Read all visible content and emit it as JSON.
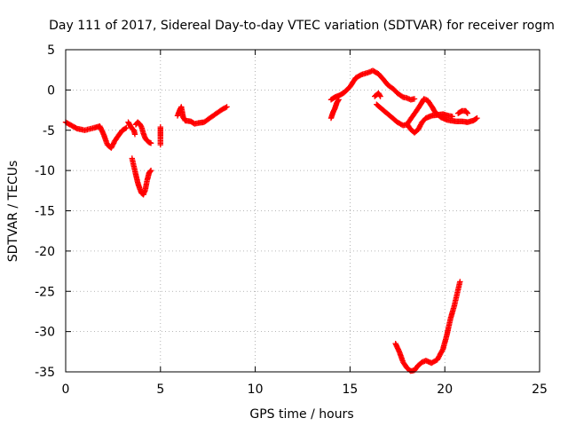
{
  "chart_data": {
    "type": "scatter",
    "title": "Day 111 of 2017, Sidereal Day-to-day VTEC variation (SDTVAR) for receiver rogm",
    "xlabel": "GPS time / hours",
    "ylabel": "SDTVAR / TECUs",
    "xlim": [
      0,
      25
    ],
    "ylim": [
      -35,
      5
    ],
    "xticks": [
      0,
      5,
      10,
      15,
      20,
      25
    ],
    "yticks": [
      5,
      0,
      -5,
      -10,
      -15,
      -20,
      -25,
      -30,
      -35
    ],
    "grid": true,
    "marker": "+",
    "color": "#ff0000",
    "series": [
      {
        "segments": [
          [
            [
              0.0,
              -4.0
            ],
            [
              0.3,
              -4.4
            ],
            [
              0.6,
              -4.8
            ],
            [
              1.0,
              -5.0
            ],
            [
              1.5,
              -4.7
            ],
            [
              1.8,
              -4.5
            ],
            [
              2.0,
              -5.5
            ],
            [
              2.2,
              -6.8
            ],
            [
              2.4,
              -7.2
            ],
            [
              2.6,
              -6.3
            ],
            [
              2.8,
              -5.6
            ],
            [
              3.0,
              -5.0
            ],
            [
              3.2,
              -4.7
            ]
          ],
          [
            [
              3.3,
              -4.0
            ],
            [
              3.4,
              -4.4
            ],
            [
              3.5,
              -4.8
            ],
            [
              3.6,
              -5.0
            ],
            [
              3.65,
              -5.5
            ]
          ],
          [
            [
              3.5,
              -8.5
            ],
            [
              3.6,
              -9.5
            ],
            [
              3.7,
              -10.5
            ],
            [
              3.8,
              -11.5
            ],
            [
              3.9,
              -12.2
            ],
            [
              4.0,
              -12.8
            ],
            [
              4.1,
              -13.0
            ],
            [
              4.2,
              -12.4
            ],
            [
              4.3,
              -11.2
            ],
            [
              4.4,
              -10.3
            ],
            [
              4.5,
              -10.0
            ]
          ],
          [
            [
              3.7,
              -4.3
            ],
            [
              3.8,
              -4.0
            ],
            [
              3.9,
              -4.2
            ],
            [
              4.0,
              -4.6
            ],
            [
              4.1,
              -5.4
            ],
            [
              4.2,
              -6.0
            ],
            [
              4.3,
              -6.3
            ],
            [
              4.4,
              -6.5
            ],
            [
              4.5,
              -6.6
            ]
          ],
          [
            [
              5.0,
              -4.6
            ],
            [
              5.0,
              -6.8
            ]
          ],
          [
            [
              5.9,
              -3.2
            ],
            [
              6.0,
              -2.6
            ],
            [
              6.1,
              -2.1
            ],
            [
              6.2,
              -3.4
            ],
            [
              6.3,
              -3.8
            ],
            [
              6.6,
              -3.9
            ],
            [
              6.8,
              -4.2
            ],
            [
              7.0,
              -4.1
            ],
            [
              7.3,
              -4.0
            ],
            [
              7.6,
              -3.5
            ],
            [
              7.9,
              -3.0
            ],
            [
              8.2,
              -2.5
            ],
            [
              8.5,
              -2.1
            ]
          ],
          [
            [
              14.0,
              -3.5
            ],
            [
              14.1,
              -2.8
            ],
            [
              14.2,
              -2.3
            ],
            [
              14.3,
              -1.6
            ],
            [
              14.4,
              -1.2
            ]
          ],
          [
            [
              14.0,
              -1.2
            ],
            [
              14.2,
              -0.9
            ],
            [
              14.5,
              -0.6
            ],
            [
              14.7,
              -0.3
            ],
            [
              15.0,
              0.4
            ],
            [
              15.3,
              1.5
            ],
            [
              15.6,
              1.9
            ],
            [
              16.0,
              2.2
            ],
            [
              16.2,
              2.4
            ],
            [
              16.5,
              2.0
            ],
            [
              16.8,
              1.2
            ],
            [
              17.0,
              0.6
            ],
            [
              17.3,
              0.1
            ],
            [
              17.5,
              -0.4
            ],
            [
              17.8,
              -0.9
            ],
            [
              18.0,
              -1.0
            ],
            [
              18.2,
              -1.2
            ],
            [
              18.4,
              -1.1
            ]
          ],
          [
            [
              16.3,
              -0.8
            ],
            [
              16.5,
              -0.4
            ],
            [
              16.6,
              -0.8
            ]
          ],
          [
            [
              16.4,
              -1.8
            ],
            [
              16.8,
              -2.6
            ],
            [
              17.2,
              -3.4
            ],
            [
              17.5,
              -4.0
            ],
            [
              17.8,
              -4.4
            ],
            [
              18.0,
              -4.3
            ],
            [
              18.2,
              -3.6
            ],
            [
              18.5,
              -2.6
            ],
            [
              18.7,
              -1.9
            ],
            [
              18.9,
              -1.1
            ],
            [
              19.1,
              -1.3
            ],
            [
              19.3,
              -2.0
            ],
            [
              19.5,
              -2.8
            ],
            [
              19.8,
              -3.4
            ],
            [
              20.1,
              -3.7
            ],
            [
              20.3,
              -3.8
            ],
            [
              20.6,
              -3.9
            ],
            [
              20.9,
              -3.9
            ],
            [
              21.2,
              -4.0
            ],
            [
              21.5,
              -3.8
            ],
            [
              21.7,
              -3.5
            ]
          ],
          [
            [
              18.0,
              -4.2
            ],
            [
              18.2,
              -4.9
            ],
            [
              18.4,
              -5.3
            ],
            [
              18.6,
              -4.9
            ],
            [
              18.8,
              -4.0
            ],
            [
              19.0,
              -3.5
            ],
            [
              19.3,
              -3.2
            ],
            [
              19.6,
              -3.1
            ],
            [
              19.9,
              -3.0
            ],
            [
              20.2,
              -3.2
            ],
            [
              20.4,
              -3.3
            ]
          ],
          [
            [
              20.7,
              -2.9
            ],
            [
              20.9,
              -2.6
            ],
            [
              21.1,
              -2.6
            ],
            [
              21.2,
              -2.9
            ]
          ],
          [
            [
              17.4,
              -31.5
            ],
            [
              17.6,
              -32.5
            ],
            [
              17.8,
              -33.8
            ],
            [
              18.0,
              -34.5
            ],
            [
              18.2,
              -34.9
            ],
            [
              18.4,
              -34.8
            ],
            [
              18.6,
              -34.2
            ],
            [
              18.8,
              -33.8
            ],
            [
              19.0,
              -33.6
            ],
            [
              19.3,
              -33.9
            ],
            [
              19.6,
              -33.5
            ],
            [
              19.9,
              -32.2
            ],
            [
              20.1,
              -30.5
            ],
            [
              20.3,
              -28.4
            ],
            [
              20.5,
              -26.8
            ],
            [
              20.7,
              -24.8
            ],
            [
              20.8,
              -23.8
            ]
          ]
        ]
      }
    ]
  }
}
